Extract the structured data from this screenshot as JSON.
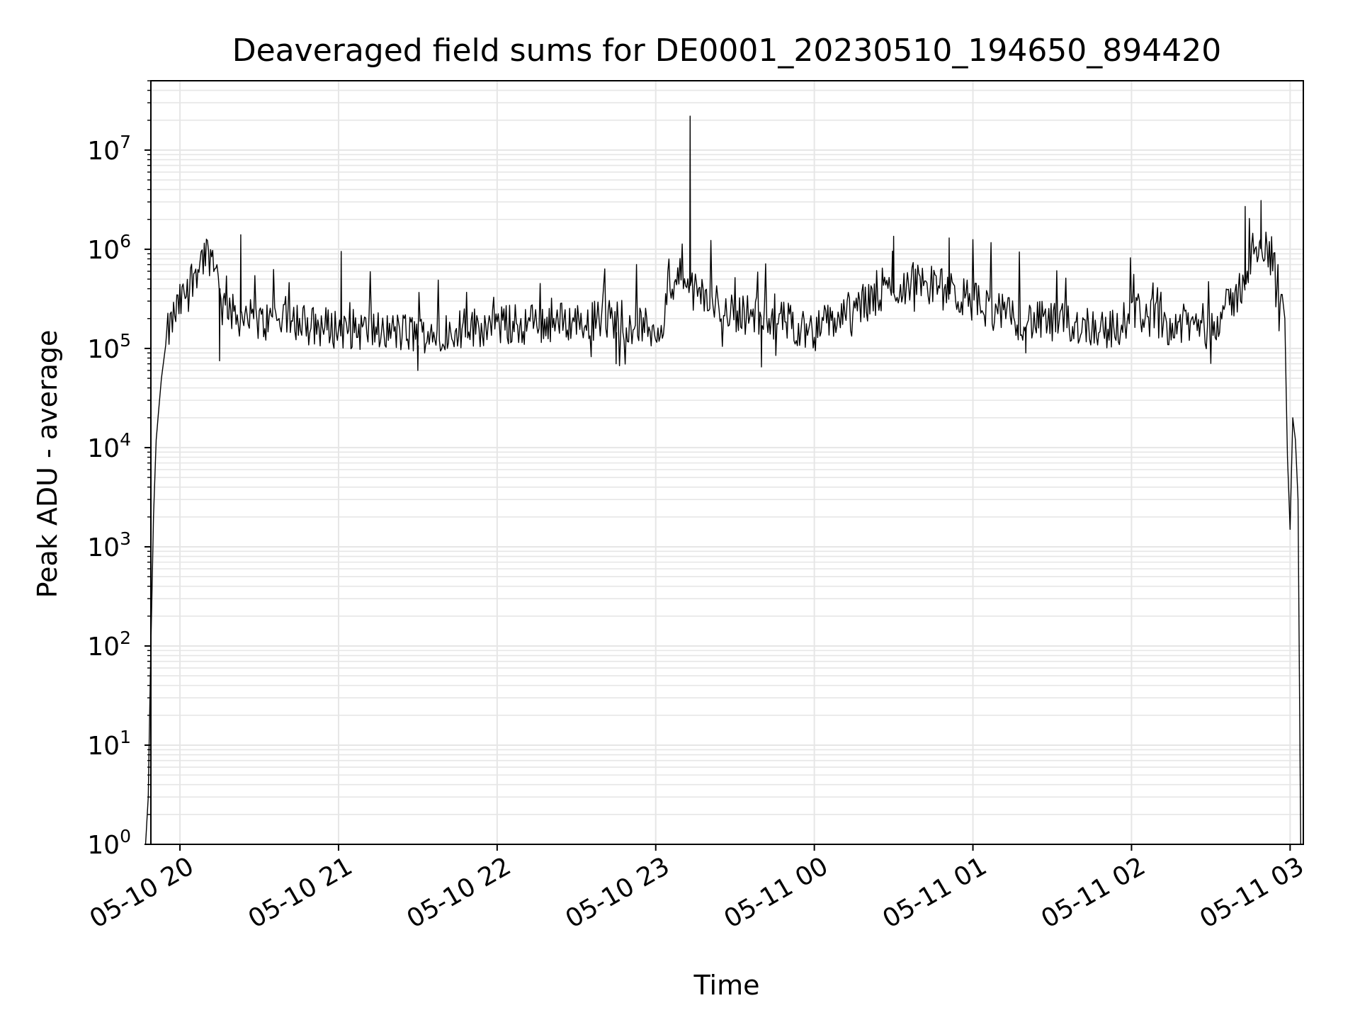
{
  "chart_data": {
    "type": "line",
    "title": "Deaveraged field sums for DE0001_20230510_194650_894420",
    "xlabel": "Time",
    "ylabel": "Peak ADU - average",
    "y_scale": "log",
    "ylim": [
      1,
      50000000
    ],
    "xlim": [
      "2023-05-10 19:49",
      "2023-05-11 03:05"
    ],
    "grid": "on (major and minor)",
    "legend": "none",
    "line_color": "#000000",
    "grid_color": "#e6e6e6",
    "x_ticks": [
      {
        "value": "2023-05-10 20:00",
        "label": "05-10 20"
      },
      {
        "value": "2023-05-10 21:00",
        "label": "05-10 21"
      },
      {
        "value": "2023-05-10 22:00",
        "label": "05-10 22"
      },
      {
        "value": "2023-05-10 23:00",
        "label": "05-10 23"
      },
      {
        "value": "2023-05-11 00:00",
        "label": "05-11 00"
      },
      {
        "value": "2023-05-11 01:00",
        "label": "05-11 01"
      },
      {
        "value": "2023-05-11 02:00",
        "label": "05-11 02"
      },
      {
        "value": "2023-05-11 03:00",
        "label": "05-11 03"
      }
    ],
    "y_ticks": [
      {
        "value": 1,
        "base": "10",
        "exp": "0"
      },
      {
        "value": 10,
        "base": "10",
        "exp": "1"
      },
      {
        "value": 100,
        "base": "10",
        "exp": "2"
      },
      {
        "value": 1000,
        "base": "10",
        "exp": "3"
      },
      {
        "value": 10000,
        "base": "10",
        "exp": "4"
      },
      {
        "value": 100000,
        "base": "10",
        "exp": "5"
      },
      {
        "value": 1000000,
        "base": "10",
        "exp": "6"
      },
      {
        "value": 10000000,
        "base": "10",
        "exp": "7"
      }
    ],
    "series": [
      {
        "x": [
          "2023-05-10 19:47",
          "2023-05-10 19:48",
          "2023-05-10 19:49",
          "2023-05-10 19:50",
          "2023-05-10 19:51",
          "2023-05-10 19:53",
          "2023-05-10 19:55",
          "2023-05-10 19:58",
          "2023-05-10 20:00",
          "2023-05-10 20:02",
          "2023-05-10 20:04",
          "2023-05-10 20:06",
          "2023-05-10 20:08",
          "2023-05-10 20:10",
          "2023-05-10 20:12",
          "2023-05-10 20:14",
          "2023-05-10 20:15",
          "2023-05-10 20:16",
          "2023-05-10 20:18",
          "2023-05-10 20:20",
          "2023-05-10 20:25",
          "2023-05-10 20:30",
          "2023-05-10 20:35",
          "2023-05-10 20:40",
          "2023-05-10 20:50",
          "2023-05-10 21:00",
          "2023-05-10 21:15",
          "2023-05-10 21:30",
          "2023-05-10 21:45",
          "2023-05-10 22:00",
          "2023-05-10 22:15",
          "2023-05-10 22:30",
          "2023-05-10 22:45",
          "2023-05-10 23:00",
          "2023-05-10 23:05",
          "2023-05-10 23:10",
          "2023-05-10 23:13",
          "2023-05-10 23:15",
          "2023-05-10 23:20",
          "2023-05-10 23:30",
          "2023-05-10 23:45",
          "2023-05-11 00:00",
          "2023-05-11 00:15",
          "2023-05-11 00:30",
          "2023-05-11 00:40",
          "2023-05-11 00:50",
          "2023-05-11 01:00",
          "2023-05-11 01:15",
          "2023-05-11 01:30",
          "2023-05-11 01:45",
          "2023-05-11 01:55",
          "2023-05-11 02:00",
          "2023-05-11 02:15",
          "2023-05-11 02:30",
          "2023-05-11 02:35",
          "2023-05-11 02:40",
          "2023-05-11 02:45",
          "2023-05-11 02:48",
          "2023-05-11 02:50",
          "2023-05-11 02:53",
          "2023-05-11 02:55",
          "2023-05-11 02:57",
          "2023-05-11 02:58",
          "2023-05-11 02:59",
          "2023-05-11 03:00",
          "2023-05-11 03:01",
          "2023-05-11 03:02",
          "2023-05-11 03:03",
          "2023-05-11 03:04"
        ],
        "values": [
          1,
          3,
          100,
          2000,
          12000,
          50000,
          130000,
          220000,
          280000,
          350000,
          480000,
          620000,
          800000,
          900000,
          850000,
          700000,
          400000,
          250000,
          300000,
          220000,
          200000,
          180000,
          190000,
          210000,
          170000,
          160000,
          150000,
          140000,
          160000,
          170000,
          180000,
          190000,
          200000,
          150000,
          250000,
          700000,
          350000,
          380000,
          300000,
          230000,
          200000,
          150000,
          250000,
          400000,
          500000,
          380000,
          300000,
          200000,
          180000,
          170000,
          150000,
          250000,
          170000,
          180000,
          230000,
          350000,
          700000,
          900000,
          1000000,
          950000,
          600000,
          350000,
          200000,
          8000,
          1500,
          20000,
          12000,
          3000,
          1
        ]
      }
    ],
    "spikes": [
      {
        "x": "2023-05-10 20:23",
        "value": 1400000
      },
      {
        "x": "2023-05-10 21:01",
        "value": 950000
      },
      {
        "x": "2023-05-10 23:13",
        "value": 22000000
      },
      {
        "x": "2023-05-11 00:30",
        "value": 1350000
      },
      {
        "x": "2023-05-11 00:51",
        "value": 1300000
      },
      {
        "x": "2023-05-11 02:43",
        "value": 2700000
      },
      {
        "x": "2023-05-11 02:49",
        "value": 3100000
      }
    ],
    "dips": [
      {
        "x": "2023-05-10 20:15",
        "value": 75000
      },
      {
        "x": "2023-05-10 21:30",
        "value": 60000
      },
      {
        "x": "2023-05-10 22:45",
        "value": 70000
      },
      {
        "x": "2023-05-10 23:40",
        "value": 65000
      },
      {
        "x": "2023-05-11 01:20",
        "value": 90000
      }
    ]
  }
}
